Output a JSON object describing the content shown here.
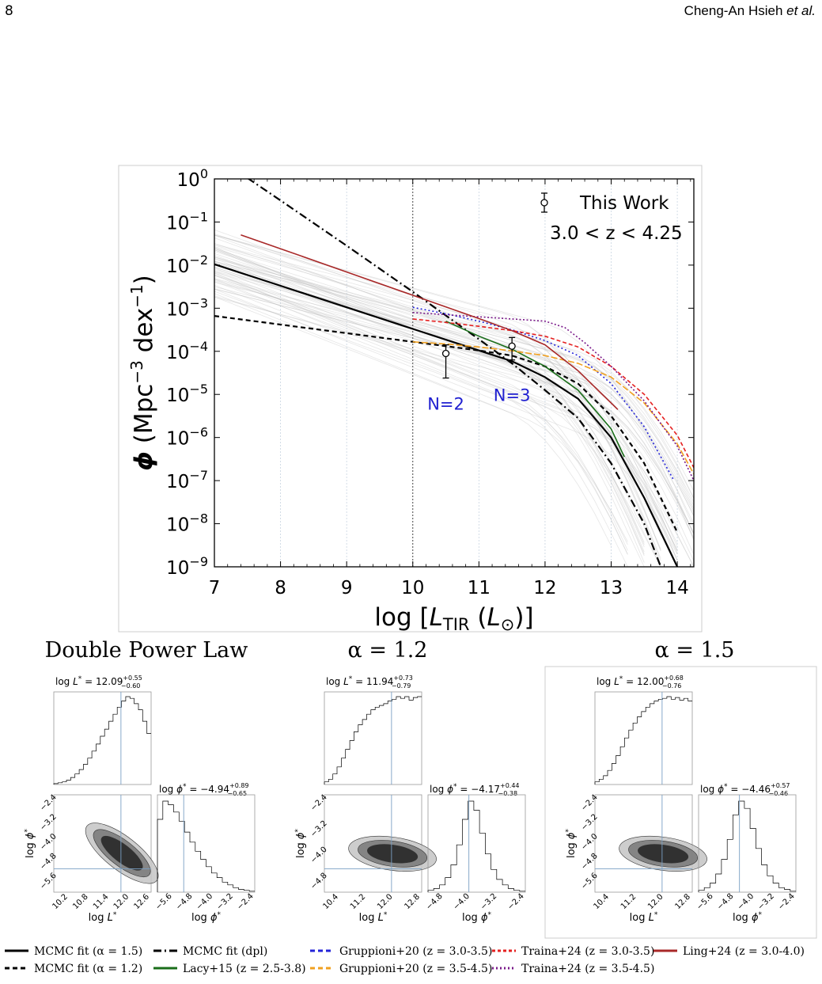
{
  "header": {
    "page_number": "8",
    "running_head_authors": "Cheng-An Hsieh ",
    "running_head_etal": "et al."
  },
  "chart_data": {
    "type": "line",
    "xlabel": "log [L_TIR (L_⊙)]",
    "xlabel_parts": {
      "pre": "log  [",
      "L": "L",
      "sub": "TIR",
      "mid": " (",
      "Lsun": "L",
      "sun": "⊙",
      "post": ")]"
    },
    "ylabel": "ϕ (Mpc⁻³ dex⁻¹)",
    "ylabel_parts": {
      "phi": "ϕ",
      "open": " (Mpc",
      "exp1": "−3",
      "dex": " dex",
      "exp2": "−1",
      "close": ")"
    },
    "xlim": [
      7,
      14.25
    ],
    "ylim_log10": [
      -9,
      0
    ],
    "y_log_scale": true,
    "x_ticks": [
      "7",
      "8",
      "9",
      "10",
      "11",
      "12",
      "13",
      "14"
    ],
    "y_ticks": [
      {
        "base": "10",
        "exp": "0"
      },
      {
        "base": "10",
        "exp": "−1"
      },
      {
        "base": "10",
        "exp": "−2"
      },
      {
        "base": "10",
        "exp": "−3"
      },
      {
        "base": "10",
        "exp": "−4"
      },
      {
        "base": "10",
        "exp": "−5"
      },
      {
        "base": "10",
        "exp": "−6"
      },
      {
        "base": "10",
        "exp": "−7"
      },
      {
        "base": "10",
        "exp": "−8"
      },
      {
        "base": "10",
        "exp": "−9"
      }
    ],
    "vline_x": 10,
    "legend_label": "This Work",
    "redshift_label": "3.0 < z < 4.25",
    "annotations": [
      {
        "text": "N=2",
        "x": 10.5,
        "y_log": -5.35,
        "color": "#1f1fd0"
      },
      {
        "text": "N=3",
        "x": 11.5,
        "y_log": -5.15,
        "color": "#1f1fd0"
      }
    ],
    "points": [
      {
        "x": 10.5,
        "y_log": -4.05,
        "err_low": -4.62,
        "err_high": -3.85
      },
      {
        "x": 11.5,
        "y_log": -3.88,
        "err_low": -4.2,
        "err_high": -3.68
      }
    ],
    "series": [
      {
        "name": "MCMC fit (α = 1.5)",
        "color": "#000000",
        "dash": "solid",
        "width": 2.2,
        "x": [
          7,
          8,
          9,
          10,
          11,
          11.5,
          12,
          12.5,
          13,
          13.5,
          14
        ],
        "y_log": [
          -1.98,
          -2.48,
          -2.98,
          -3.48,
          -3.98,
          -4.23,
          -4.6,
          -5.1,
          -6.0,
          -7.4,
          -9.0
        ]
      },
      {
        "name": "MCMC fit (α = 1.2)",
        "color": "#000000",
        "dash": "6,4",
        "width": 2.2,
        "x": [
          7,
          8,
          9,
          10,
          11,
          11.5,
          12,
          12.5,
          13,
          13.5,
          14
        ],
        "y_log": [
          -3.18,
          -3.38,
          -3.58,
          -3.78,
          -3.98,
          -4.1,
          -4.35,
          -4.75,
          -5.5,
          -6.6,
          -8.2
        ]
      },
      {
        "name": "MCMC fit (dpl)",
        "color": "#000000",
        "dash": "10,4,2,4",
        "width": 2.2,
        "x": [
          7.5,
          8,
          9,
          10,
          11,
          11.5,
          12,
          12.5,
          13,
          13.5,
          13.75
        ],
        "y_log": [
          0.02,
          -0.5,
          -1.55,
          -2.62,
          -3.72,
          -4.28,
          -4.9,
          -5.55,
          -6.6,
          -8.0,
          -9.0
        ]
      },
      {
        "name": "Lacy+15 (z = 2.5-3.8)",
        "color": "#1a6e1a",
        "dash": "solid",
        "width": 1.6,
        "x": [
          10.5,
          11,
          11.5,
          12,
          12.5,
          13,
          13.2
        ],
        "y_log": [
          -3.3,
          -3.65,
          -3.95,
          -4.35,
          -4.9,
          -5.8,
          -6.45
        ]
      },
      {
        "name": "Gruppioni+20 (z = 3.0-3.5)",
        "color": "#2323d8",
        "dash": "2,3",
        "width": 1.6,
        "x": [
          10,
          10.5,
          11,
          11.5,
          12,
          12.5,
          13,
          13.5,
          13.95
        ],
        "y_log": [
          -2.98,
          -3.13,
          -3.3,
          -3.5,
          -3.75,
          -4.1,
          -4.75,
          -5.75,
          -7.0
        ]
      },
      {
        "name": "Gruppioni+20 (z = 3.5-4.5)",
        "color": "#f0a020",
        "dash": "8,3",
        "width": 1.6,
        "x": [
          10,
          10.5,
          11,
          11.5,
          12,
          12.5,
          13,
          13.5,
          14,
          14.25
        ],
        "y_log": [
          -3.78,
          -3.83,
          -3.9,
          -3.99,
          -4.1,
          -4.28,
          -4.6,
          -5.2,
          -6.15,
          -6.85
        ]
      },
      {
        "name": "Traina+24 (z = 3.0-3.5)",
        "color": "#e52020",
        "dash": "5,3",
        "width": 1.6,
        "x": [
          10,
          10.5,
          11,
          11.5,
          12,
          12.5,
          13,
          13.5,
          14,
          14.25
        ],
        "y_log": [
          -3.25,
          -3.33,
          -3.42,
          -3.52,
          -3.65,
          -3.9,
          -4.35,
          -5.0,
          -5.95,
          -6.7
        ]
      },
      {
        "name": "Traina+24 (z = 3.5-4.5)",
        "color": "#7a1a8a",
        "dash": "2,2.5",
        "width": 1.6,
        "x": [
          10,
          10.5,
          11,
          11.5,
          12,
          12.3,
          12.6,
          13,
          13.5,
          14,
          14.25
        ],
        "y_log": [
          -3.1,
          -3.15,
          -3.2,
          -3.25,
          -3.3,
          -3.45,
          -3.8,
          -4.35,
          -5.15,
          -6.2,
          -7.0
        ]
      },
      {
        "name": "Ling+24 (z = 3.0-4.0)",
        "color": "#a82828",
        "dash": "solid",
        "width": 1.6,
        "x": [
          7.4,
          8,
          9,
          10,
          11,
          11.5,
          12,
          12.5,
          13.1
        ],
        "y_log": [
          -1.3,
          -1.62,
          -2.16,
          -2.7,
          -3.24,
          -3.52,
          -3.85,
          -4.45,
          -5.35
        ]
      }
    ]
  },
  "corner_plots": [
    {
      "title": "Double Power Law",
      "lstar_label": "log L* = 12.09",
      "lstar_label_parts": {
        "pre": "log ",
        "L": "L",
        "sup": "*",
        "val": " = 12.09",
        "up": "+0.55",
        "lo": "−0.60"
      },
      "phistar_label_parts": {
        "pre": "log ",
        "phi": "ϕ",
        "sup": "*",
        "val": " = −4.94",
        "up": "+0.89",
        "lo": "−0.65"
      },
      "lstar_ticks": [
        "10.2",
        "10.8",
        "11.4",
        "12.0",
        "12.6"
      ],
      "phistar_ticks": [
        "−5.6",
        "−4.8",
        "−4.0",
        "−3.2",
        "−2.4"
      ],
      "y_ticks": [
        "−2.4",
        "−3.2",
        "−4.0",
        "−4.8",
        "−5.6"
      ],
      "hist_lstar": [
        1,
        2,
        3,
        5,
        8,
        12,
        17,
        23,
        30,
        38,
        46,
        55,
        63,
        72,
        80,
        88,
        95,
        100,
        98,
        92,
        85,
        72,
        58
      ],
      "hist_phistar": [
        80,
        100,
        96,
        88,
        78,
        66,
        55,
        45,
        36,
        28,
        21,
        16,
        11,
        8,
        5,
        3,
        2,
        1
      ]
    },
    {
      "title": "α = 1.2",
      "lstar_label_parts": {
        "pre": "log ",
        "L": "L",
        "sup": "*",
        "val": " = 11.94",
        "up": "+0.73",
        "lo": "−0.79"
      },
      "phistar_label_parts": {
        "pre": "log ",
        "phi": "ϕ",
        "sup": "*",
        "val": " = −4.17",
        "up": "+0.44",
        "lo": "−0.38"
      },
      "lstar_ticks": [
        "10.4",
        "11.2",
        "12.0",
        "12.8"
      ],
      "phistar_ticks": [
        "−4.8",
        "−4.0",
        "−3.2",
        "−2.4"
      ],
      "y_ticks": [
        "−2.4",
        "−3.2",
        "−4.0",
        "−4.8"
      ],
      "hist_lstar": [
        3,
        6,
        12,
        20,
        30,
        40,
        50,
        60,
        68,
        74,
        80,
        85,
        88,
        90,
        92,
        95,
        97,
        100,
        98,
        100,
        96,
        99,
        100
      ],
      "hist_phistar": [
        2,
        4,
        8,
        16,
        30,
        52,
        80,
        100,
        90,
        65,
        42,
        25,
        14,
        8,
        4,
        2,
        1
      ]
    },
    {
      "title": "α = 1.5",
      "lstar_label_parts": {
        "pre": "log ",
        "L": "L",
        "sup": "*",
        "val": " = 12.00",
        "up": "+0.68",
        "lo": "−0.76"
      },
      "phistar_label_parts": {
        "pre": "log ",
        "phi": "ϕ",
        "sup": "*",
        "val": " = −4.46",
        "up": "+0.57",
        "lo": "−0.46"
      },
      "lstar_ticks": [
        "10.4",
        "11.2",
        "12.0",
        "12.8"
      ],
      "phistar_ticks": [
        "−5.6",
        "−4.8",
        "−4.0",
        "−3.2",
        "−2.4"
      ],
      "y_ticks": [
        "−2.4",
        "−3.2",
        "−4.0",
        "−4.8",
        "−5.6"
      ],
      "hist_lstar": [
        3,
        6,
        10,
        16,
        24,
        33,
        43,
        53,
        62,
        70,
        77,
        83,
        88,
        92,
        95,
        97,
        98,
        100,
        97,
        99,
        96,
        98,
        95
      ],
      "hist_phistar": [
        2,
        5,
        10,
        20,
        36,
        58,
        85,
        100,
        92,
        70,
        48,
        30,
        18,
        10,
        5,
        3,
        1
      ]
    }
  ],
  "legend": [
    {
      "label": "MCMC fit (α = 1.5)",
      "color": "#000000",
      "dash": "solid"
    },
    {
      "label": "MCMC fit (dpl)",
      "color": "#000000",
      "dash": "10,4,2,4"
    },
    {
      "label": "Gruppioni+20 (z = 3.0-3.5)",
      "color": "#2323d8",
      "dash": "6,4"
    },
    {
      "label": "Traina+24 (z = 3.0-3.5)",
      "color": "#e52020",
      "dash": "4,3"
    },
    {
      "label": "Ling+24 (z = 3.0-4.0)",
      "color": "#a82828",
      "dash": "solid"
    },
    {
      "label": "MCMC fit (α = 1.2)",
      "color": "#000000",
      "dash": "6,4"
    },
    {
      "label": "Lacy+15 (z = 2.5-3.8)",
      "color": "#1a6e1a",
      "dash": "solid"
    },
    {
      "label": "Gruppioni+20 (z = 3.5-4.5)",
      "color": "#f0a020",
      "dash": "6,4"
    },
    {
      "label": "Traina+24 (z = 3.5-4.5)",
      "color": "#7a1a8a",
      "dash": "2,3"
    }
  ]
}
